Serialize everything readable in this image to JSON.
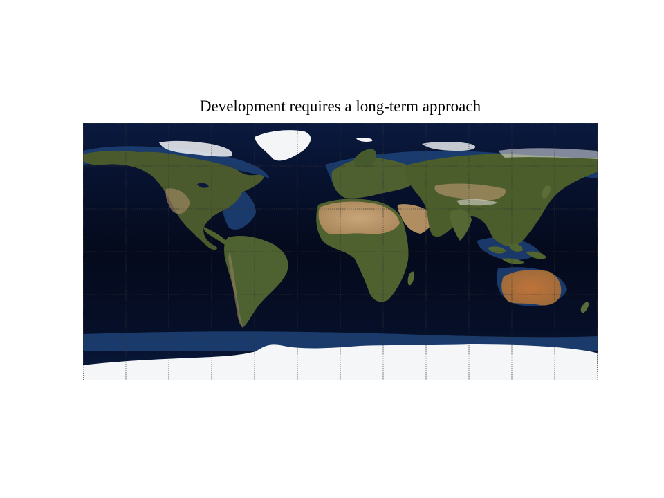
{
  "title": "Development requires a long-term approach",
  "map": {
    "projection": "equirectangular",
    "basemap": "satellite imagery (Blue Marble style)",
    "extent": {
      "lon": [
        -180,
        180
      ],
      "lat": [
        -90,
        90
      ]
    },
    "graticule": {
      "lon_step_deg": 30,
      "lat_step_deg": 30,
      "style": "dotted"
    },
    "colors": {
      "ocean_deep": "#050a1c",
      "ocean_shelf": "#1d3f73",
      "land_vegetation": "#4b5a2a",
      "land_desert": "#b99566",
      "ice": "#f4f6f8",
      "grid": "#333333"
    }
  }
}
